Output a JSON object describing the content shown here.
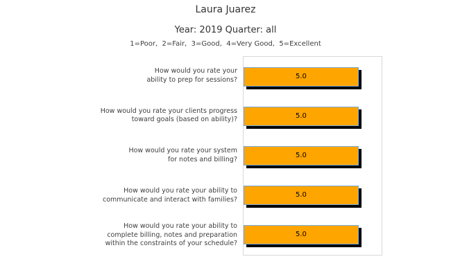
{
  "header": {
    "title": "Laura Juarez",
    "subtitle": "Year: 2019 Quarter: all",
    "scale_legend": "1=Poor,  2=Fair,  3=Good,  4=Very Good,  5=Excellent"
  },
  "chart_data": {
    "type": "bar",
    "orientation": "horizontal",
    "title": "Laura Juarez",
    "subtitle": "Year: 2019 Quarter: all",
    "scale_legend": "1=Poor,  2=Fair,  3=Good,  4=Very Good,  5=Excellent",
    "categories": [
      "How would you rate your\nability to prep for sessions?",
      "How would you rate your clients progress\ntoward goals (based on ability)?",
      "How would you rate your system\nfor notes and billing?",
      "How would you rate your ability to\ncommunicate and interact with families?",
      "How would you rate your ability to\ncomplete billing, notes and preparation\nwithin the constraints of your schedule?"
    ],
    "values": [
      5.0,
      5.0,
      5.0,
      5.0,
      5.0
    ],
    "value_labels": [
      "5.0",
      "5.0",
      "5.0",
      "5.0",
      "5.0"
    ],
    "xlim": [
      0,
      6
    ],
    "grid": false,
    "legend_position": "none",
    "xlabel": "",
    "ylabel": "",
    "colors": {
      "bar_fill": "#FFA500",
      "bar_edge": "#74ABDF",
      "bar_shadow": "#000000",
      "plot_border": "#d8d8d8",
      "text": "#3a3a3a",
      "background": "#ffffff"
    }
  }
}
